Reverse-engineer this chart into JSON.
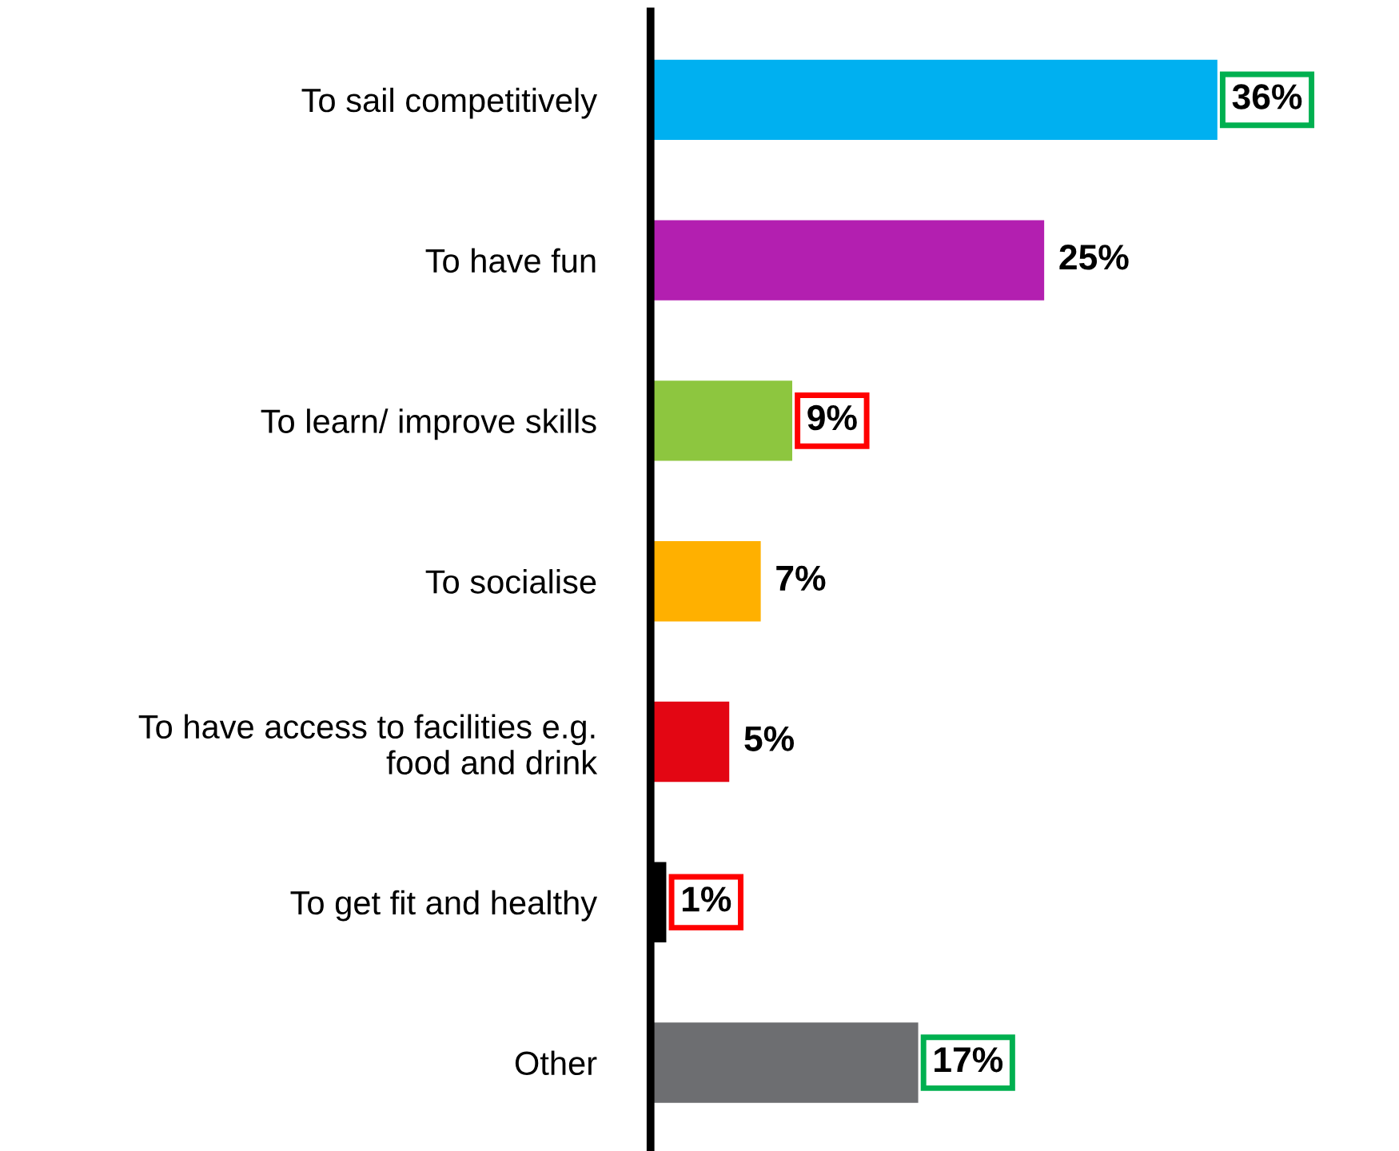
{
  "chart_data": {
    "type": "bar",
    "orientation": "horizontal",
    "categories": [
      "To sail competitively",
      "To have fun",
      "To learn/ improve skills",
      "To socialise",
      "To have access to facilities e.g.\nfood and drink",
      "To get fit and healthy",
      "Other"
    ],
    "values": [
      36,
      25,
      9,
      7,
      5,
      1,
      17
    ],
    "value_labels": [
      "36%",
      "25%",
      "9%",
      "7%",
      "5%",
      "1%",
      "17%"
    ],
    "colors": [
      "#00b0f0",
      "#b31fb0",
      "#8dc63f",
      "#ffb000",
      "#e30613",
      "#000000",
      "#6d6e71"
    ],
    "tick_labels": "y",
    "grid": false,
    "legend": false
  }
}
